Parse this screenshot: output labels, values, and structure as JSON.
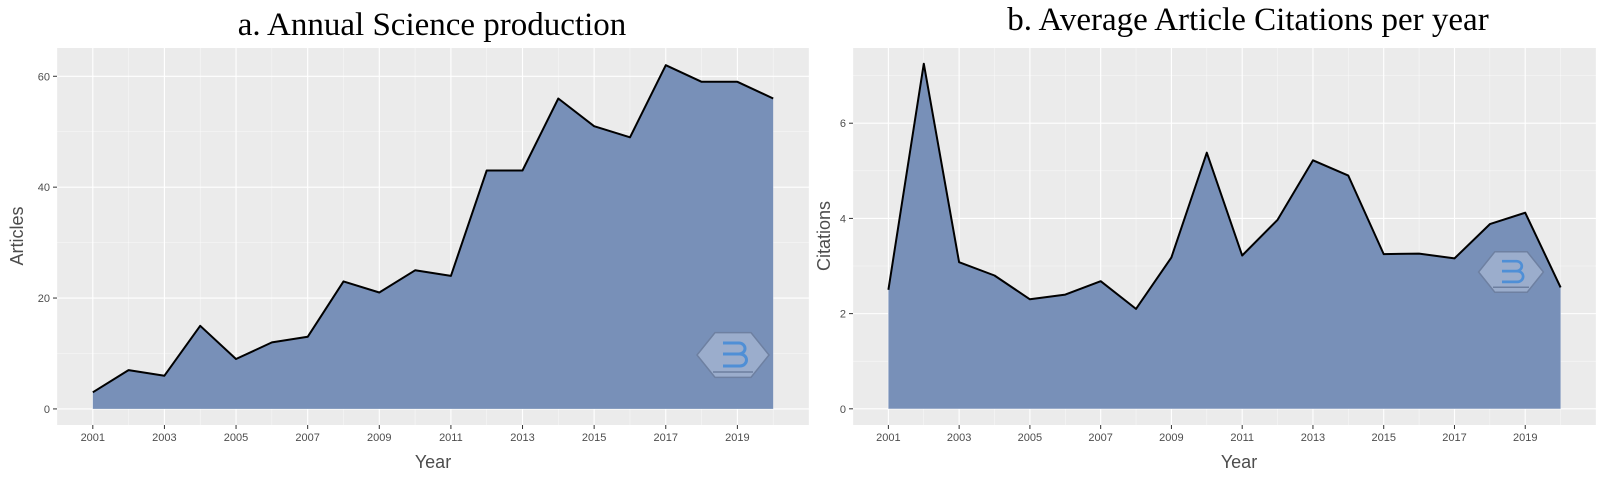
{
  "chart_data": [
    {
      "type": "area",
      "title": "a.  Annual Science production",
      "xlabel": "Year",
      "ylabel": "Articles",
      "x": [
        2001,
        2002,
        2003,
        2004,
        2005,
        2006,
        2007,
        2008,
        2009,
        2010,
        2011,
        2012,
        2013,
        2014,
        2015,
        2016,
        2017,
        2018,
        2019,
        2020
      ],
      "values": [
        3,
        7,
        6,
        15,
        9,
        12,
        13,
        23,
        21,
        25,
        24,
        43,
        43,
        56,
        51,
        49,
        62,
        59,
        59,
        56
      ],
      "xlim": [
        2000,
        2021
      ],
      "ylim": [
        -2.9,
        65.1
      ],
      "xticks": [
        "2001",
        "2003",
        "2005",
        "2007",
        "2009",
        "2011",
        "2013",
        "2015",
        "2017",
        "2019"
      ],
      "yticks": [
        "0",
        "20",
        "40",
        "60"
      ],
      "grid": true,
      "fill_color": "#7890b8",
      "line_color": "#000000",
      "background": "#ebebeb"
    },
    {
      "type": "area",
      "title": "b. Average Article Citations per year",
      "xlabel": "Year",
      "ylabel": "Citations",
      "x": [
        2001,
        2002,
        2003,
        2004,
        2005,
        2006,
        2007,
        2008,
        2009,
        2010,
        2011,
        2012,
        2013,
        2014,
        2015,
        2016,
        2017,
        2018,
        2019,
        2020
      ],
      "values": [
        2.5,
        7.25,
        3.08,
        2.8,
        2.3,
        2.4,
        2.68,
        2.1,
        3.18,
        5.38,
        3.22,
        3.97,
        5.22,
        4.9,
        3.25,
        3.26,
        3.16,
        3.88,
        4.12,
        2.55
      ],
      "xlim": [
        2000,
        2021
      ],
      "ylim": [
        -0.34,
        7.58
      ],
      "xticks": [
        "2001",
        "2003",
        "2005",
        "2007",
        "2009",
        "2011",
        "2013",
        "2015",
        "2017",
        "2019"
      ],
      "yticks": [
        "0",
        "2",
        "4",
        "6"
      ],
      "grid": true,
      "fill_color": "#7890b8",
      "line_color": "#000000",
      "background": "#ebebeb"
    }
  ],
  "watermark_icon": "bibliometrix-hexagon-logo"
}
